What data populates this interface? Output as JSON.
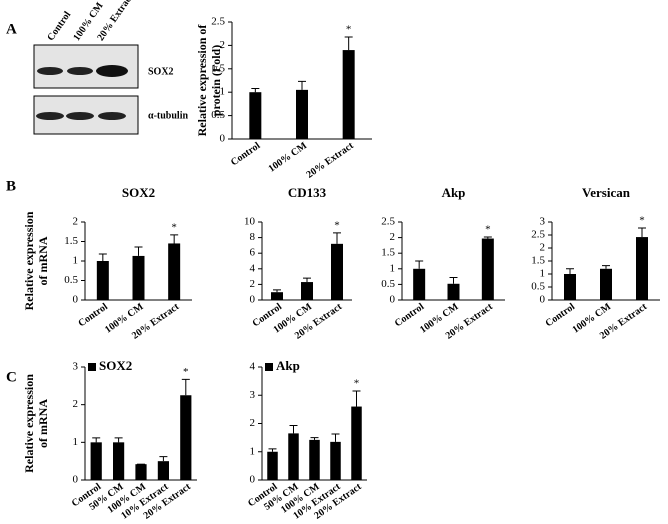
{
  "panel_labels": [
    "A",
    "B",
    "C"
  ],
  "blot": {
    "lanes": [
      "Control",
      "100% CM",
      "20% Extract"
    ],
    "bands": [
      "SOX2",
      "α-tubulin"
    ]
  },
  "chart_data": [
    {
      "type": "bar",
      "ylabel": [
        "Relative expression of",
        "protein (Fold)"
      ],
      "categories": [
        "Control",
        "100% CM",
        "20% Extract"
      ],
      "values": [
        1.0,
        1.05,
        1.9
      ],
      "errors": [
        0.08,
        0.18,
        0.28
      ],
      "significance": [
        null,
        null,
        "*"
      ],
      "color": "#000000",
      "ylim": [
        0,
        2.5
      ],
      "yticks": [
        0,
        0.5,
        1,
        1.5,
        2,
        2.5
      ]
    },
    {
      "type": "bar",
      "title": "SOX2",
      "ylabel": [
        "Relative expression",
        "of mRNA"
      ],
      "categories": [
        "Control",
        "100% CM",
        "20% Extract"
      ],
      "values": [
        1.0,
        1.13,
        1.45
      ],
      "errors": [
        0.18,
        0.23,
        0.22
      ],
      "significance": [
        null,
        null,
        "*"
      ],
      "color": "#000000",
      "ylim": [
        0,
        2
      ],
      "yticks": [
        0,
        0.5,
        1,
        1.5,
        2
      ]
    },
    {
      "type": "bar",
      "title": "CD133",
      "categories": [
        "Control",
        "100% CM",
        "20% Extract"
      ],
      "values": [
        1.0,
        2.3,
        7.2
      ],
      "errors": [
        0.3,
        0.5,
        1.4
      ],
      "significance": [
        null,
        null,
        "*"
      ],
      "color": "#000000",
      "ylim": [
        0,
        10
      ],
      "yticks": [
        0,
        2,
        4,
        6,
        8,
        10
      ]
    },
    {
      "type": "bar",
      "title": "Akp",
      "categories": [
        "Control",
        "100% CM",
        "20% Extract"
      ],
      "values": [
        1.0,
        0.52,
        1.97
      ],
      "errors": [
        0.25,
        0.2,
        0.05
      ],
      "significance": [
        null,
        null,
        "*"
      ],
      "color": "#000000",
      "ylim": [
        0,
        2.5
      ],
      "yticks": [
        0,
        0.5,
        1,
        1.5,
        2,
        2.5
      ]
    },
    {
      "type": "bar",
      "title": "Versican",
      "categories": [
        "Control",
        "100% CM",
        "20% Extract"
      ],
      "values": [
        1.0,
        1.2,
        2.42
      ],
      "errors": [
        0.2,
        0.12,
        0.35
      ],
      "significance": [
        null,
        null,
        "*"
      ],
      "color": "#000000",
      "ylim": [
        0,
        3
      ],
      "yticks": [
        0,
        0.5,
        1,
        1.5,
        2,
        2.5,
        3
      ]
    },
    {
      "type": "bar",
      "ylabel": [
        "Relative expression",
        "of mRNA"
      ],
      "categories": [
        "Control",
        "50% CM",
        "100% CM",
        "10% Extract",
        "20% Extract"
      ],
      "series": [
        {
          "name": "SOX2",
          "color": "#000000",
          "values": [
            1.0,
            1.0,
            0.42,
            0.5,
            2.25
          ],
          "errors": [
            0.12,
            0.12,
            0,
            0.12,
            0.42
          ],
          "significance": [
            null,
            null,
            null,
            null,
            "*"
          ]
        }
      ],
      "ylim": [
        0,
        3
      ],
      "yticks": [
        0,
        1,
        2,
        3
      ]
    },
    {
      "type": "bar",
      "categories": [
        "Control",
        "50% CM",
        "100% CM",
        "10% Extract",
        "20% Extract"
      ],
      "series": [
        {
          "name": "Akp",
          "color": "#000000",
          "values": [
            1.0,
            1.65,
            1.42,
            1.35,
            2.6
          ],
          "errors": [
            0.1,
            0.28,
            0.08,
            0.28,
            0.55
          ],
          "significance": [
            null,
            null,
            null,
            null,
            "*"
          ]
        }
      ],
      "ylim": [
        0,
        4
      ],
      "yticks": [
        0,
        1,
        2,
        3,
        4
      ]
    }
  ]
}
